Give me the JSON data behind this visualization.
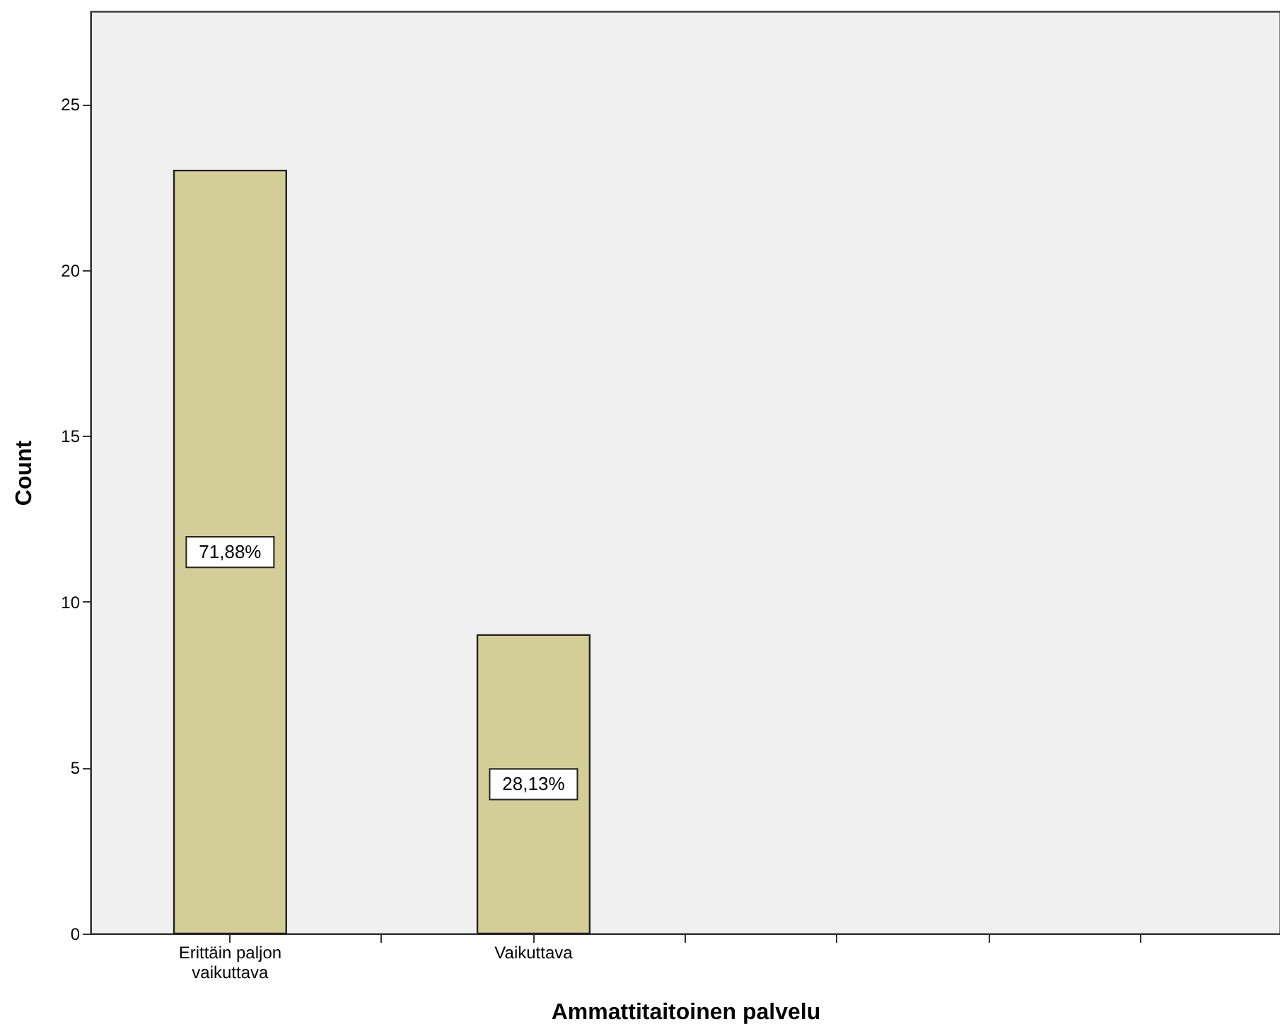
{
  "chart_data": {
    "type": "bar",
    "xlabel": "Ammattitaitoinen palvelu",
    "ylabel": "Count",
    "categories": [
      "Erittäin paljon vaikuttava",
      null,
      "Vaikuttava",
      null,
      null,
      null,
      null
    ],
    "values": [
      23,
      null,
      9,
      null,
      null,
      null,
      null
    ],
    "annotations": [
      "71,88%",
      "28,13%"
    ],
    "color": "#d3cd98",
    "ylim": [
      0,
      27.8
    ],
    "yticks": [
      0,
      5,
      10,
      15,
      20,
      25
    ],
    "grid": false
  }
}
